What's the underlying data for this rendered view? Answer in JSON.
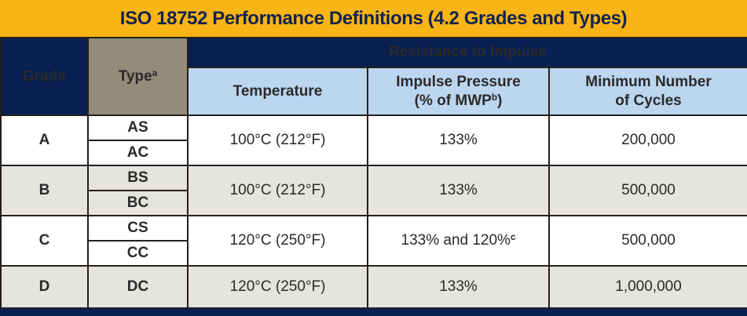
{
  "title": "ISO 18752 Performance Definitions (4.2 Grades and Types)",
  "colors": {
    "gold": "#f9b515",
    "navy": "#0a2053",
    "taupe": "#948c79",
    "light_blue": "#bcd6f0",
    "row_alt_gray": "#e6e4e1",
    "border_dark": "#241f1c",
    "text_dark": "#2b2a29",
    "title_text_navy": "#12234e"
  },
  "table": {
    "header": {
      "grade_label": "Grade",
      "type_label": "Type",
      "type_footnote": "a",
      "resistance_label": "Resistance to Impulse",
      "temperature_label": "Temperature",
      "impulse_label_line1": "Impulse Pressure",
      "impulse_label_line2_open": "(% of MWP",
      "impulse_footnote": "b",
      "impulse_label_line2_close": ")",
      "cycles_label_line1": "Minimum Number",
      "cycles_label_line2": "of Cycles"
    },
    "rows": [
      {
        "grade": "A",
        "type_1": "AS",
        "type_2": "AC",
        "temperature": "100°C (212°F)",
        "impulse_pressure": "133%",
        "impulse_footnote": "",
        "min_cycles": "200,000"
      },
      {
        "grade": "B",
        "type_1": "BS",
        "type_2": "BC",
        "temperature": "100°C (212°F)",
        "impulse_pressure": "133%",
        "impulse_footnote": "",
        "min_cycles": "500,000"
      },
      {
        "grade": "C",
        "type_1": "CS",
        "type_2": "CC",
        "temperature": "120°C (250°F)",
        "impulse_pressure": "133% and 120%",
        "impulse_footnote": "c",
        "min_cycles": "500,000"
      },
      {
        "grade": "D",
        "type_1": "DC",
        "temperature": "120°C (250°F)",
        "impulse_pressure": "133%",
        "impulse_footnote": "",
        "min_cycles": "1,000,000"
      }
    ]
  }
}
